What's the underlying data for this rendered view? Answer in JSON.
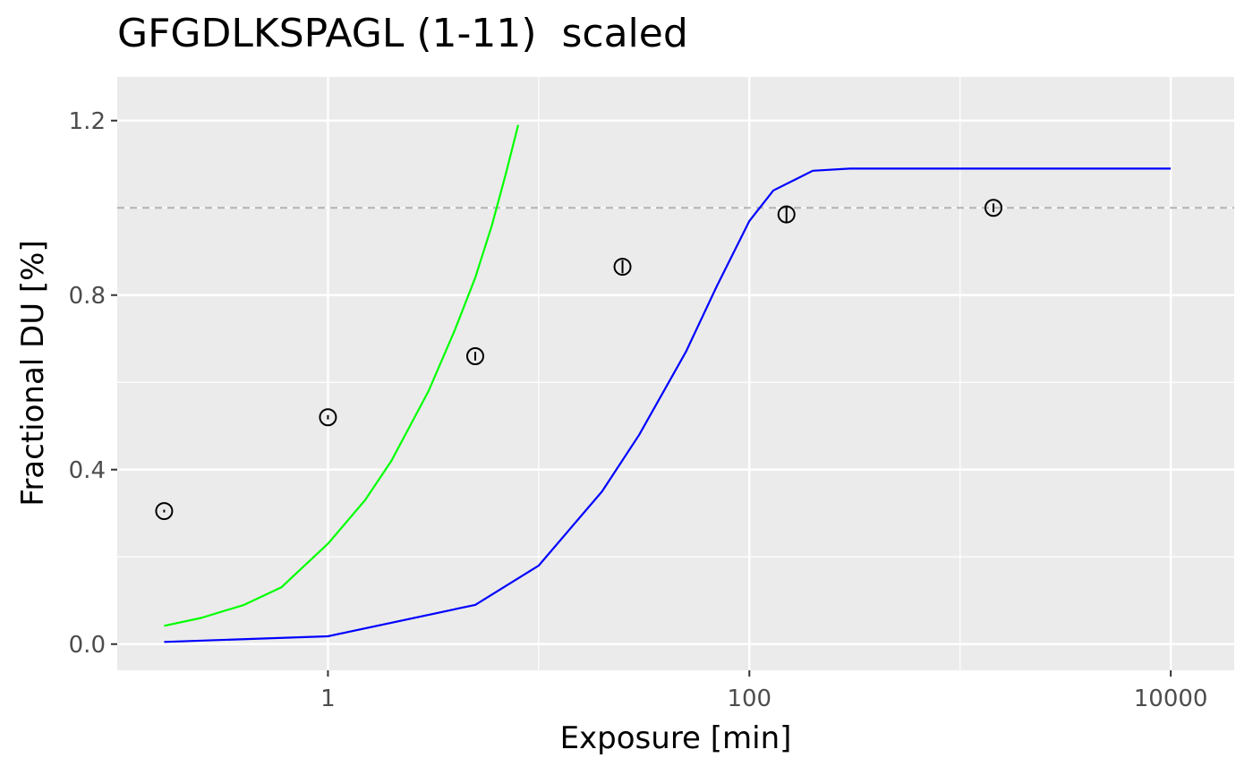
{
  "chart_data": {
    "type": "scatter",
    "title": "GFGDLKSPAGL (1-11)  scaled",
    "xlabel": "Exposure [min]",
    "ylabel": "Fractional DU [%]",
    "x_scale": "log10",
    "xlim": [
      0.1,
      20000
    ],
    "ylim": [
      -0.06,
      1.3
    ],
    "x_ticks": [
      1,
      100,
      10000
    ],
    "x_tick_labels": [
      "1",
      "100",
      "10000"
    ],
    "y_ticks": [
      0.0,
      0.4,
      0.8,
      1.2
    ],
    "y_tick_labels": [
      "0.0",
      "0.4",
      "0.8",
      "1.2"
    ],
    "grid": true,
    "background": "#ebebeb",
    "reference_line": {
      "y": 1.0,
      "style": "dashed",
      "color": "#b3b3b3"
    },
    "points": [
      {
        "x": 0.167,
        "y": 0.305,
        "err": 0.003
      },
      {
        "x": 1.0,
        "y": 0.52,
        "err": 0.005
      },
      {
        "x": 5.0,
        "y": 0.66,
        "err": 0.01
      },
      {
        "x": 25.0,
        "y": 0.865,
        "err": 0.015
      },
      {
        "x": 150.0,
        "y": 0.985,
        "err": 0.02
      },
      {
        "x": 1440.0,
        "y": 1.0,
        "err": 0.01
      }
    ],
    "series": [
      {
        "color": "#00ff00",
        "x": [
          0.167,
          0.25,
          0.4,
          0.6,
          1.0,
          1.5,
          2.0,
          3.0,
          4.0,
          5.0,
          6.0,
          7.0,
          8.0
        ],
        "y": [
          0.042,
          0.06,
          0.09,
          0.13,
          0.23,
          0.33,
          0.42,
          0.58,
          0.72,
          0.84,
          0.96,
          1.08,
          1.19
        ]
      },
      {
        "color": "#0000ff",
        "x": [
          0.167,
          1.0,
          5.0,
          10.0,
          20.0,
          30.0,
          50.0,
          70.0,
          100.0,
          130.0,
          200.0,
          300.0,
          500.0,
          1000.0,
          10000.0
        ],
        "y": [
          0.005,
          0.018,
          0.09,
          0.18,
          0.35,
          0.48,
          0.67,
          0.82,
          0.97,
          1.04,
          1.085,
          1.09,
          1.09,
          1.09,
          1.09
        ]
      }
    ]
  }
}
